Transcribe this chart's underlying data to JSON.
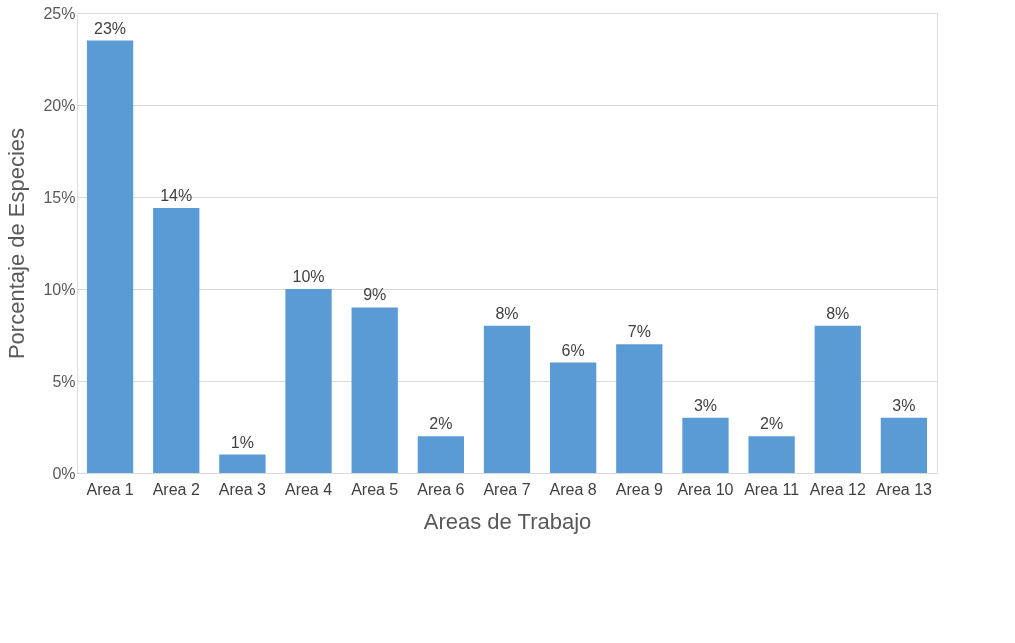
{
  "chart_data": {
    "type": "bar",
    "xlabel": "Areas de Trabajo",
    "ylabel": "Porcentaje de Especies",
    "categories": [
      "Area 1",
      "Area 2",
      "Area 3",
      "Area 4",
      "Area 5",
      "Area 6",
      "Area 7",
      "Area 8",
      "Area 9",
      "Area 10",
      "Area 11",
      "Area 12",
      "Area 13"
    ],
    "values": [
      23.5,
      14.4,
      1,
      10,
      9,
      2,
      8,
      6,
      7,
      3,
      2,
      8,
      3
    ],
    "value_labels": [
      "23%",
      "14%",
      "1%",
      "10%",
      "9%",
      "2%",
      "8%",
      "6%",
      "7%",
      "3%",
      "2%",
      "8%",
      "3%"
    ],
    "color": "#5b9bd5",
    "ylim": [
      0,
      25
    ],
    "yticks": [
      {
        "value": 0,
        "label": "0%"
      },
      {
        "value": 5,
        "label": "5%"
      },
      {
        "value": 10,
        "label": "10%"
      },
      {
        "value": 15,
        "label": "15%"
      },
      {
        "value": 20,
        "label": "20%"
      },
      {
        "value": 25,
        "label": "25%"
      }
    ],
    "grid": "y"
  }
}
